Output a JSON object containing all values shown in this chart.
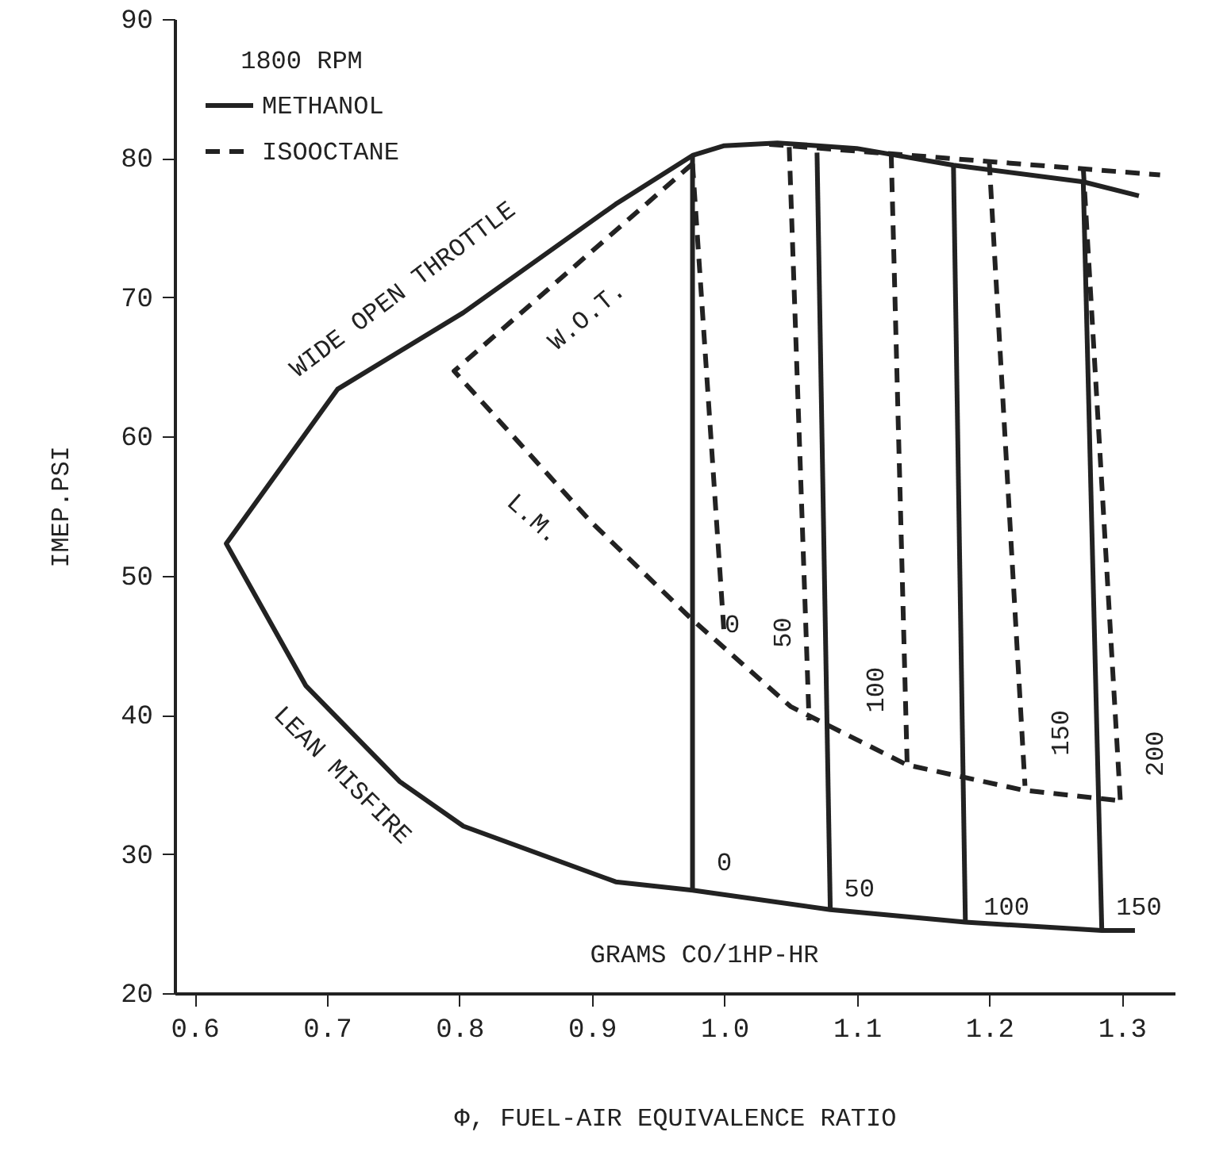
{
  "chart_data": {
    "type": "line",
    "xlabel": "Φ, FUEL-AIR EQUIVALENCE RATIO",
    "ylabel": "IMEP.PSI",
    "legend_title": "1800 RPM",
    "legend": "top left",
    "grid": false,
    "marker": "none",
    "xlim": [
      0.585,
      1.34
    ],
    "ylim": [
      20,
      90
    ],
    "xticks": [
      0.6,
      0.7,
      0.8,
      0.9,
      {
        "value": 1.0,
        "label": "1.0"
      },
      1.1,
      1.2,
      1.3
    ],
    "yticks": [
      20,
      30,
      40,
      50,
      60,
      70,
      80,
      90
    ],
    "series": [
      {
        "name": "METHANOL",
        "color": "#222222",
        "line_style": "solid",
        "x": [
          1.313,
          1.271,
          1.173,
          1.1,
          1.04,
          1.0,
          0.976,
          0.918,
          0.803,
          0.708,
          0.624,
          0.684,
          0.755,
          0.803,
          0.918,
          0.976,
          1.08,
          1.182,
          1.285,
          1.31
        ],
        "values": [
          77.3,
          78.3,
          79.5,
          80.7,
          81.1,
          80.9,
          80.2,
          76.7,
          68.9,
          63.4,
          52.3,
          42.1,
          35.2,
          32.0,
          28.0,
          27.4,
          26.0,
          25.1,
          24.5,
          24.5
        ]
      },
      {
        "name": "ISOOCTANE",
        "color": "#222222",
        "line_style": "dashed",
        "x": [
          0.976,
          0.796,
          0.899,
          0.974,
          1.05,
          1.138,
          1.225,
          1.301
        ],
        "values": [
          79.6,
          64.7,
          53.9,
          47.0,
          40.6,
          36.4,
          34.6,
          33.8
        ]
      },
      {
        "color": "#222222",
        "line_style": "dashed",
        "x": [
          1.034,
          1.329
        ],
        "values": [
          81.0,
          78.8
        ]
      },
      {
        "color": "#222222",
        "line_style": "solid",
        "x": [
          0.976,
          0.976
        ],
        "values": [
          80.2,
          27.4
        ]
      },
      {
        "color": "#222222",
        "line_style": "solid",
        "x": [
          1.07,
          1.08
        ],
        "values": [
          80.4,
          26.0
        ]
      },
      {
        "color": "#222222",
        "line_style": "solid",
        "x": [
          1.173,
          1.182
        ],
        "values": [
          79.5,
          25.1
        ]
      },
      {
        "color": "#222222",
        "line_style": "solid",
        "x": [
          1.271,
          1.285
        ],
        "values": [
          78.3,
          24.5
        ]
      },
      {
        "color": "#222222",
        "line_style": "dashed",
        "x": [
          0.976,
          1.0
        ],
        "values": [
          79.6,
          45.6
        ]
      },
      {
        "color": "#222222",
        "line_style": "dashed",
        "x": [
          1.049,
          1.064
        ],
        "values": [
          80.8,
          39.6
        ]
      },
      {
        "color": "#222222",
        "line_style": "dashed",
        "x": [
          1.126,
          1.138
        ],
        "values": [
          80.3,
          36.6
        ]
      },
      {
        "color": "#222222",
        "line_style": "dashed",
        "x": [
          1.2,
          1.227
        ],
        "values": [
          79.8,
          34.9
        ]
      },
      {
        "color": "#222222",
        "line_style": "dashed",
        "x": [
          1.271,
          1.299
        ],
        "values": [
          79.3,
          33.8
        ]
      }
    ],
    "annotations": [
      "WIDE OPEN THROTTLE",
      "LEAN MISFIRE",
      "W.O.T.",
      "L.M.",
      "GRAMS CO/1HP-HR",
      "0",
      "50",
      "100",
      "150",
      "0",
      "50",
      "100",
      "150",
      "200"
    ]
  }
}
